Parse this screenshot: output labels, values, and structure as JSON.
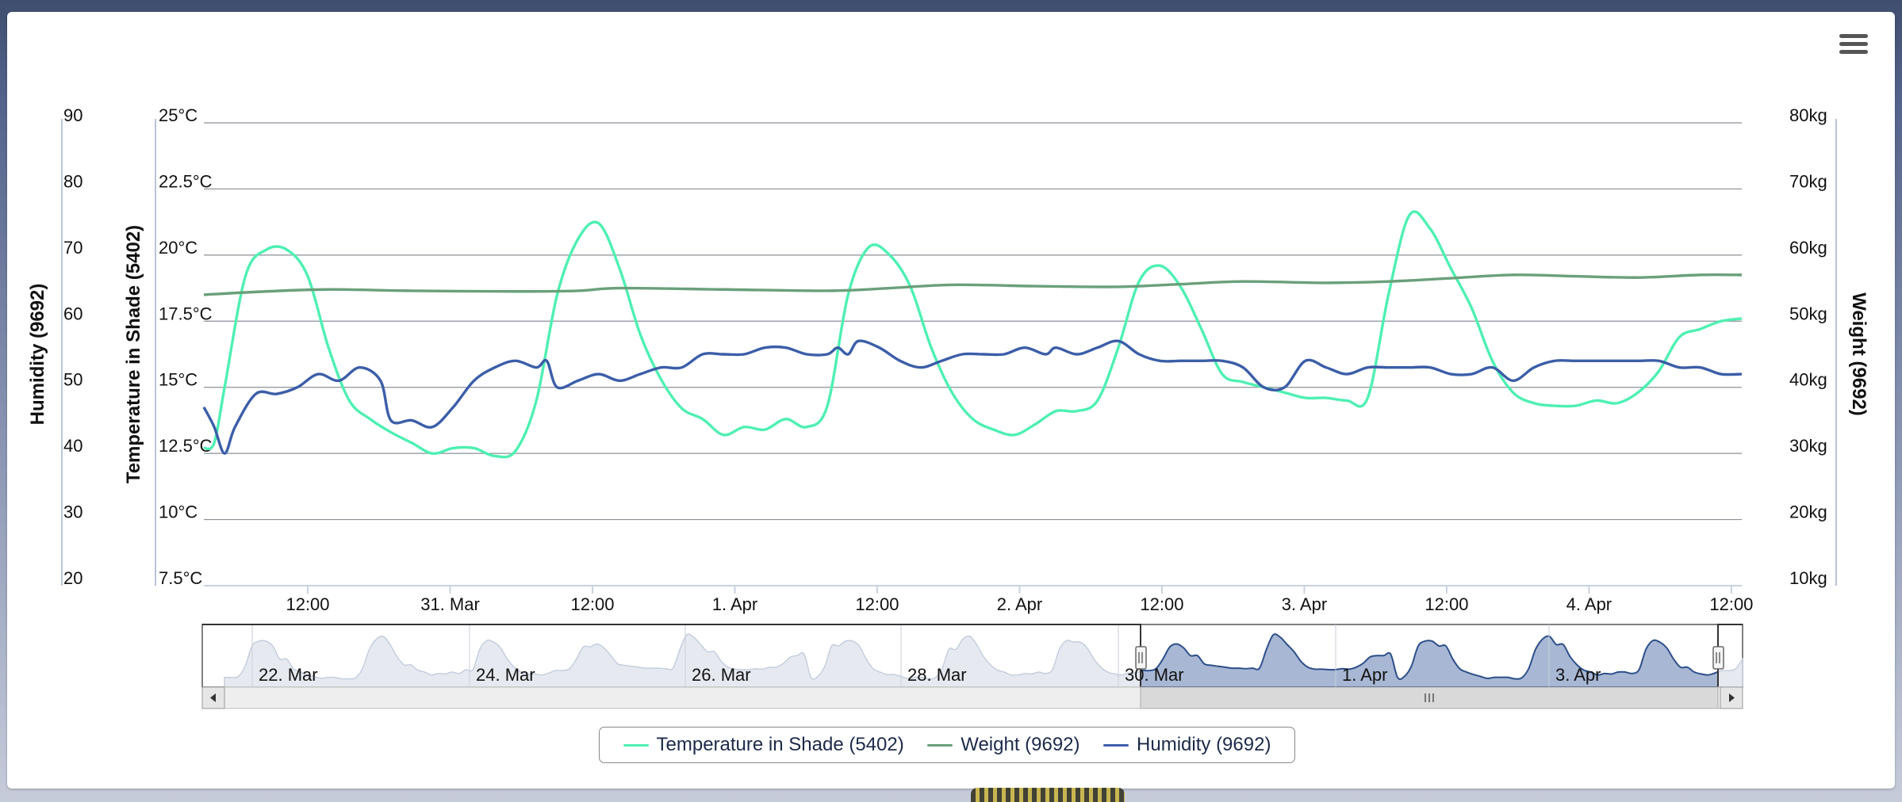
{
  "app": {
    "menu_icon": "hamburger-menu-icon"
  },
  "colors": {
    "temperature": "#4ef0b2",
    "weight": "#6aa07a",
    "humidity": "#3b5ea8",
    "grid": "#8b8f96",
    "navigator_fill_selected": "#a8b8d4",
    "navigator_fill_unselected": "#e6eaf0"
  },
  "chart_data": {
    "type": "line",
    "x_ticks": [
      "12:00",
      "31. Mar",
      "12:00",
      "1. Apr",
      "12:00",
      "2. Apr",
      "12:00",
      "3. Apr",
      "12:00",
      "4. Apr",
      "12:00"
    ],
    "x_range": [
      "30. Mar 02:00",
      "4. Apr 16:00"
    ],
    "y_axes": [
      {
        "title": "Humidity (9692)",
        "ticks": [
          "90",
          "80",
          "70",
          "60",
          "50",
          "40",
          "30",
          "20"
        ],
        "range": [
          20,
          90
        ],
        "side": "left-outer"
      },
      {
        "title": "Temperature in Shade (5402)",
        "ticks": [
          "25°C",
          "22.5°C",
          "20°C",
          "17.5°C",
          "15°C",
          "12.5°C",
          "10°C",
          "7.5°C"
        ],
        "range": [
          7.5,
          25
        ],
        "side": "left-inner"
      },
      {
        "title": "Weight (9692)",
        "ticks": [
          "80kg",
          "70kg",
          "60kg",
          "50kg",
          "40kg",
          "30kg",
          "20kg",
          "10kg"
        ],
        "range": [
          10,
          80
        ],
        "side": "right"
      }
    ],
    "grid": true,
    "series": [
      {
        "name": "Temperature in Shade (5402)",
        "unit": "°C",
        "points": [
          [
            0,
            12.7
          ],
          [
            1,
            12.9
          ],
          [
            2,
            15.0
          ],
          [
            4,
            19.2
          ],
          [
            6,
            20.2
          ],
          [
            8,
            20.2
          ],
          [
            10,
            19.2
          ],
          [
            12,
            16.5
          ],
          [
            14,
            14.5
          ],
          [
            16,
            13.8
          ],
          [
            18,
            13.3
          ],
          [
            20,
            12.9
          ],
          [
            22,
            12.5
          ],
          [
            24,
            12.7
          ],
          [
            26,
            12.7
          ],
          [
            28,
            12.4
          ],
          [
            30,
            12.6
          ],
          [
            32,
            14.5
          ],
          [
            34,
            18.5
          ],
          [
            36,
            20.6
          ],
          [
            38,
            21.2
          ],
          [
            40,
            19.5
          ],
          [
            42,
            17.0
          ],
          [
            44,
            15.3
          ],
          [
            46,
            14.2
          ],
          [
            48,
            13.8
          ],
          [
            50,
            13.2
          ],
          [
            52,
            13.5
          ],
          [
            54,
            13.4
          ],
          [
            56,
            13.8
          ],
          [
            58,
            13.5
          ],
          [
            60,
            14.3
          ],
          [
            62,
            18.5
          ],
          [
            64,
            20.3
          ],
          [
            66,
            20.0
          ],
          [
            68,
            18.8
          ],
          [
            70,
            16.5
          ],
          [
            72,
            14.8
          ],
          [
            74,
            13.8
          ],
          [
            76,
            13.4
          ],
          [
            78,
            13.2
          ],
          [
            80,
            13.6
          ],
          [
            82,
            14.1
          ],
          [
            84,
            14.1
          ],
          [
            86,
            14.5
          ],
          [
            88,
            16.5
          ],
          [
            90,
            19.0
          ],
          [
            92,
            19.6
          ],
          [
            94,
            18.8
          ],
          [
            96,
            17.2
          ],
          [
            98,
            15.5
          ],
          [
            100,
            15.2
          ],
          [
            102,
            15.0
          ],
          [
            104,
            14.8
          ],
          [
            106,
            14.6
          ],
          [
            108,
            14.6
          ],
          [
            110,
            14.5
          ],
          [
            112,
            14.6
          ],
          [
            114,
            18.5
          ],
          [
            116,
            21.5
          ],
          [
            118,
            21.0
          ],
          [
            120,
            19.5
          ],
          [
            122,
            18.0
          ],
          [
            124,
            16.0
          ],
          [
            126,
            14.8
          ],
          [
            128,
            14.4
          ],
          [
            130,
            14.3
          ],
          [
            132,
            14.3
          ],
          [
            134,
            14.5
          ],
          [
            136,
            14.4
          ],
          [
            138,
            14.8
          ],
          [
            140,
            15.6
          ],
          [
            142,
            16.9
          ],
          [
            144,
            17.2
          ],
          [
            146,
            17.5
          ],
          [
            148,
            17.6
          ]
        ]
      },
      {
        "name": "Weight (9692)",
        "unit": "kg",
        "points": [
          [
            0,
            54.0
          ],
          [
            6,
            54.5
          ],
          [
            12,
            54.8
          ],
          [
            20,
            54.6
          ],
          [
            30,
            54.5
          ],
          [
            36,
            54.6
          ],
          [
            40,
            55.0
          ],
          [
            50,
            54.8
          ],
          [
            60,
            54.6
          ],
          [
            66,
            55.0
          ],
          [
            72,
            55.5
          ],
          [
            80,
            55.3
          ],
          [
            88,
            55.2
          ],
          [
            94,
            55.6
          ],
          [
            100,
            56.0
          ],
          [
            108,
            55.8
          ],
          [
            114,
            56.0
          ],
          [
            120,
            56.5
          ],
          [
            126,
            57.0
          ],
          [
            132,
            56.8
          ],
          [
            138,
            56.6
          ],
          [
            144,
            57.0
          ],
          [
            148,
            57.0
          ]
        ]
      },
      {
        "name": "Humidity (9692)",
        "unit": "%",
        "points": [
          [
            0,
            47
          ],
          [
            1,
            44
          ],
          [
            2,
            40
          ],
          [
            3,
            44
          ],
          [
            5,
            49
          ],
          [
            7,
            49
          ],
          [
            9,
            50
          ],
          [
            11,
            52
          ],
          [
            13,
            51
          ],
          [
            15,
            53
          ],
          [
            17,
            51
          ],
          [
            18,
            45
          ],
          [
            20,
            45
          ],
          [
            22,
            44
          ],
          [
            24,
            47
          ],
          [
            26,
            51
          ],
          [
            28,
            53
          ],
          [
            30,
            54
          ],
          [
            32,
            53
          ],
          [
            33,
            54
          ],
          [
            34,
            50
          ],
          [
            36,
            51
          ],
          [
            38,
            52
          ],
          [
            40,
            51
          ],
          [
            42,
            52
          ],
          [
            44,
            53
          ],
          [
            46,
            53
          ],
          [
            48,
            55
          ],
          [
            50,
            55
          ],
          [
            52,
            55
          ],
          [
            54,
            56
          ],
          [
            56,
            56
          ],
          [
            58,
            55
          ],
          [
            60,
            55
          ],
          [
            61,
            56
          ],
          [
            62,
            55
          ],
          [
            63,
            57
          ],
          [
            65,
            56
          ],
          [
            67,
            54
          ],
          [
            69,
            53
          ],
          [
            71,
            54
          ],
          [
            73,
            55
          ],
          [
            75,
            55
          ],
          [
            77,
            55
          ],
          [
            79,
            56
          ],
          [
            81,
            55
          ],
          [
            82,
            56
          ],
          [
            84,
            55
          ],
          [
            86,
            56
          ],
          [
            88,
            57
          ],
          [
            90,
            55
          ],
          [
            92,
            54
          ],
          [
            94,
            54
          ],
          [
            96,
            54
          ],
          [
            98,
            54
          ],
          [
            100,
            53
          ],
          [
            102,
            50
          ],
          [
            104,
            50
          ],
          [
            106,
            54
          ],
          [
            108,
            53
          ],
          [
            110,
            52
          ],
          [
            112,
            53
          ],
          [
            114,
            53
          ],
          [
            116,
            53
          ],
          [
            118,
            53
          ],
          [
            120,
            52
          ],
          [
            122,
            52
          ],
          [
            124,
            53
          ],
          [
            126,
            51
          ],
          [
            128,
            53
          ],
          [
            130,
            54
          ],
          [
            132,
            54
          ],
          [
            134,
            54
          ],
          [
            136,
            54
          ],
          [
            138,
            54
          ],
          [
            140,
            54
          ],
          [
            142,
            53
          ],
          [
            144,
            53
          ],
          [
            146,
            52
          ],
          [
            148,
            52
          ]
        ]
      }
    ],
    "navigator": {
      "labels": [
        "22. Mar",
        "24. Mar",
        "26. Mar",
        "28. Mar",
        "30. Mar",
        "1. Apr",
        "3. Apr"
      ],
      "selected_range": [
        "30. Mar",
        "4. Apr"
      ]
    }
  },
  "legend": [
    {
      "label": "Temperature in Shade (5402)",
      "color": "#4ef0b2"
    },
    {
      "label": "Weight (9692)",
      "color": "#6aa07a"
    },
    {
      "label": "Humidity (9692)",
      "color": "#3b5ea8"
    }
  ]
}
